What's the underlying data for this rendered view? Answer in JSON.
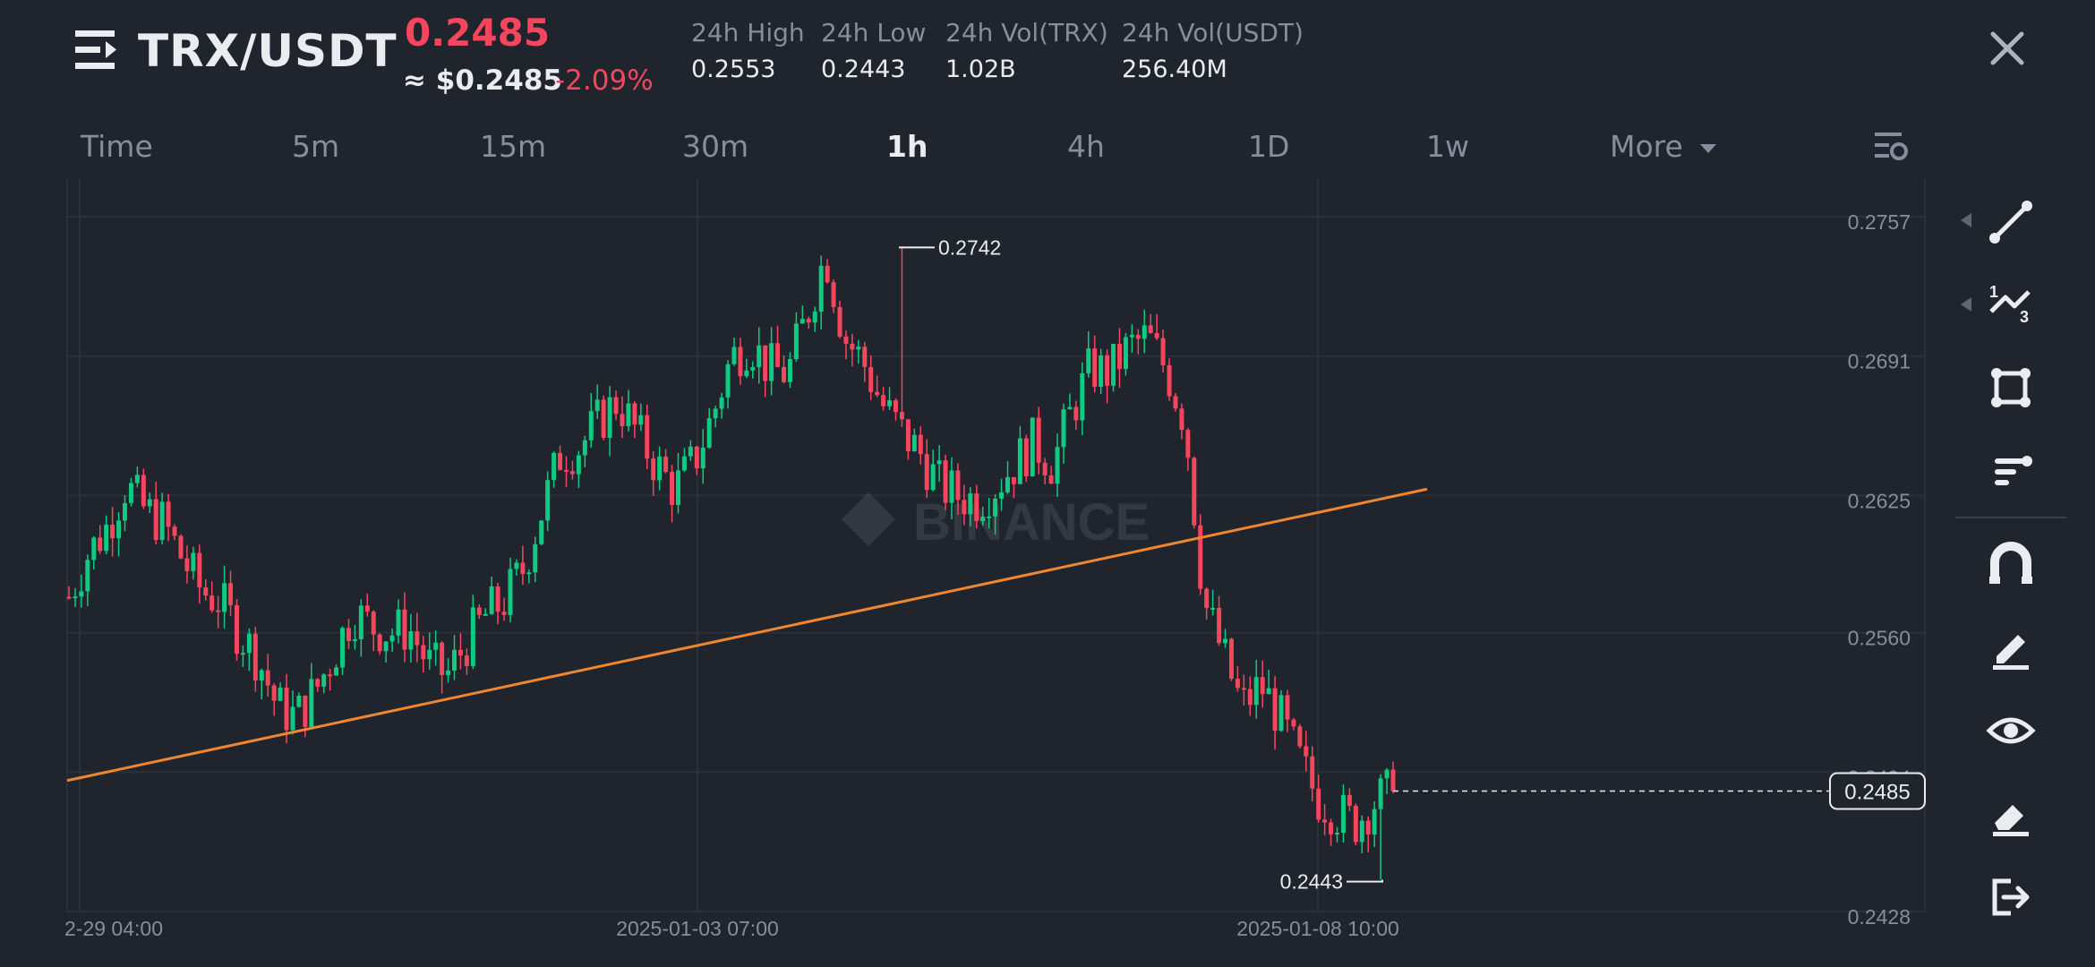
{
  "header": {
    "pair": "TRX/USDT",
    "last_price": "0.2485",
    "price_usd": "≈ $0.2485",
    "change": "-2.09%",
    "stats": [
      {
        "label": "24h High",
        "value": "0.2553"
      },
      {
        "label": "24h Low",
        "value": "0.2443"
      },
      {
        "label": "24h Vol(TRX)",
        "value": "1.02B"
      },
      {
        "label": "24h Vol(USDT)",
        "value": "256.40M"
      }
    ]
  },
  "tabs": [
    "Time",
    "5m",
    "15m",
    "30m",
    "1h",
    "4h",
    "1D",
    "1w"
  ],
  "active_tab": "1h",
  "more_label": "More",
  "chart": {
    "watermark": "BINANCE",
    "y_ticks": [
      "0.2757",
      "0.2691",
      "0.2625",
      "0.2560",
      "0.2494",
      "0.2428"
    ],
    "x_ticks": [
      "2-29 04:00",
      "2025-01-03 07:00",
      "2025-01-08 10:00"
    ],
    "high_label": "0.2742",
    "low_label": "0.2443",
    "current_price_label": "0.2485"
  },
  "chart_data": {
    "type": "candlestick",
    "interval": "1h",
    "ylim": [
      0.2428,
      0.2757
    ],
    "y_ticks": [
      0.2757,
      0.2691,
      0.2625,
      0.256,
      0.2494,
      0.2428
    ],
    "x_ticks": [
      "2-29 04:00",
      "2025-01-03 07:00",
      "2025-01-08 10:00"
    ],
    "max_marker": 0.2742,
    "min_marker": 0.2443,
    "last_price": 0.2485,
    "trendline": {
      "start": 0.249,
      "end": 0.2628
    },
    "close_path": [
      0.2577,
      0.2597,
      0.261,
      0.263,
      0.2618,
      0.2612,
      0.2595,
      0.258,
      0.2575,
      0.256,
      0.2548,
      0.2525,
      0.252,
      0.2532,
      0.255,
      0.257,
      0.2563,
      0.256,
      0.2562,
      0.2545,
      0.254,
      0.2555,
      0.2568,
      0.2575,
      0.259,
      0.2618,
      0.2645,
      0.2648,
      0.266,
      0.267,
      0.2655,
      0.264,
      0.2628,
      0.264,
      0.2662,
      0.269,
      0.2698,
      0.2685,
      0.2683,
      0.271,
      0.274,
      0.27,
      0.2688,
      0.2668,
      0.2655,
      0.2645,
      0.263,
      0.2625,
      0.2623,
      0.263,
      0.264,
      0.265,
      0.264,
      0.2665,
      0.2685,
      0.2683,
      0.2695,
      0.27,
      0.2685,
      0.266,
      0.2575,
      0.255,
      0.2525,
      0.2535,
      0.252,
      0.25,
      0.2482,
      0.2475,
      0.247,
      0.248,
      0.2485
    ]
  },
  "toolbar": {
    "tools": [
      "trend-line-icon",
      "fibonacci-icon",
      "rectangle-icon",
      "text-annotation-icon",
      "magnet-icon",
      "pencil-icon",
      "eye-icon",
      "eraser-icon",
      "exit-icon"
    ]
  },
  "colors": {
    "up": "#0ecb81",
    "down": "#f6465d",
    "trendline": "#f0862f",
    "background": "#1f242d"
  }
}
